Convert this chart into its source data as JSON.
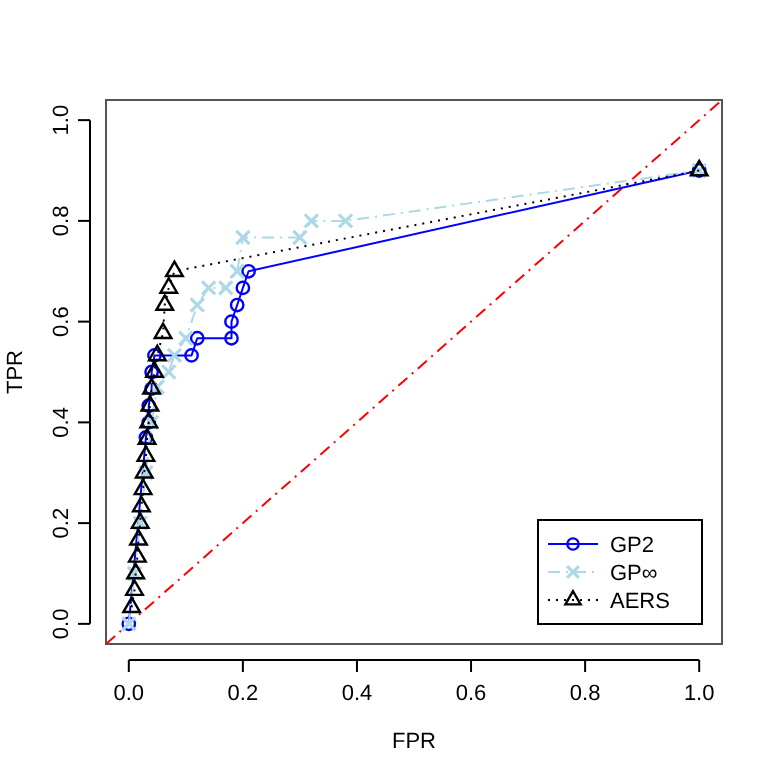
{
  "chart_data": {
    "type": "line",
    "xlabel": "FPR",
    "ylabel": "TPR",
    "xlim": [
      -0.04,
      1.04
    ],
    "ylim": [
      -0.04,
      1.04
    ],
    "xticks": [
      {
        "value": 0,
        "label": "0.0"
      },
      {
        "value": 0.2,
        "label": "0.2"
      },
      {
        "value": 0.4,
        "label": "0.4"
      },
      {
        "value": 0.6,
        "label": "0.6"
      },
      {
        "value": 0.8,
        "label": "0.8"
      },
      {
        "value": 1,
        "label": "1.0"
      }
    ],
    "yticks": [
      {
        "value": 0,
        "label": "0.0"
      },
      {
        "value": 0.2,
        "label": "0.2"
      },
      {
        "value": 0.4,
        "label": "0.4"
      },
      {
        "value": 0.6,
        "label": "0.6"
      },
      {
        "value": 0.8,
        "label": "0.8"
      },
      {
        "value": 1,
        "label": "1.0"
      }
    ],
    "legend": "bottom right",
    "grid": false,
    "series": [
      {
        "color": "#ff0000",
        "marker": "none",
        "line_style": "dashed",
        "x": [
          -0.04,
          1.04
        ],
        "values": [
          -0.04,
          1.04
        ]
      },
      {
        "name": "GP2",
        "color": "#0000ff",
        "marker": "circle",
        "line_style": "solid",
        "x": [
          0,
          0.03,
          0.035,
          0.035,
          0.04,
          0.04,
          0.045,
          0.11,
          0.12,
          0.18,
          0.18,
          0.19,
          0.2,
          0.21,
          1
        ],
        "values": [
          0,
          0.37,
          0.4,
          0.433,
          0.467,
          0.5,
          0.533,
          0.533,
          0.567,
          0.567,
          0.6,
          0.633,
          0.667,
          0.7,
          0.9
        ]
      },
      {
        "name": "GP∞",
        "color": "#add8e6",
        "marker": "cross",
        "line_style": "dashed",
        "x": [
          0,
          0.01,
          0.02,
          0.03,
          0.04,
          0.05,
          0.07,
          0.08,
          0.1,
          0.12,
          0.14,
          0.17,
          0.19,
          0.2,
          0.3,
          0.32,
          0.38,
          1
        ],
        "values": [
          0,
          0.1,
          0.2,
          0.3,
          0.4,
          0.47,
          0.5,
          0.533,
          0.567,
          0.633,
          0.667,
          0.667,
          0.7,
          0.767,
          0.767,
          0.8,
          0.8,
          0.9
        ]
      },
      {
        "name": "AERS",
        "color": "#000000",
        "marker": "triangle",
        "line_style": "dotted",
        "x": [
          0.005,
          0.01,
          0.012,
          0.015,
          0.017,
          0.02,
          0.022,
          0.025,
          0.027,
          0.03,
          0.032,
          0.035,
          0.037,
          0.04,
          0.045,
          0.05,
          0.06,
          0.063,
          0.07,
          0.08,
          1
        ],
        "values": [
          0.033,
          0.067,
          0.1,
          0.133,
          0.167,
          0.2,
          0.233,
          0.267,
          0.3,
          0.333,
          0.367,
          0.4,
          0.433,
          0.467,
          0.5,
          0.533,
          0.577,
          0.633,
          0.667,
          0.7,
          0.9
        ]
      }
    ]
  }
}
